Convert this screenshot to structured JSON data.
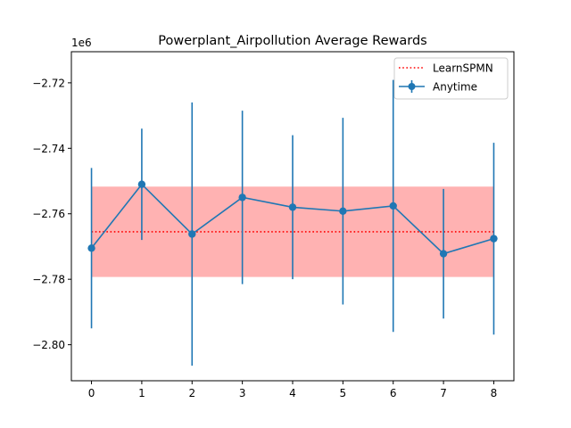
{
  "chart_data": {
    "type": "line",
    "title": "Powerplant_Airpollution Average Rewards",
    "xlabel": "",
    "ylabel": "",
    "y_offset_label": "1e6",
    "x": [
      0,
      1,
      2,
      3,
      4,
      5,
      6,
      7,
      8
    ],
    "xlim": [
      -0.4,
      8.4
    ],
    "ylim": [
      -2.811,
      -2.7105
    ],
    "xticks": [
      "0",
      "1",
      "2",
      "3",
      "4",
      "5",
      "6",
      "7",
      "8"
    ],
    "yticks": [
      {
        "value": -2.72,
        "label": "−2.72"
      },
      {
        "value": -2.74,
        "label": "−2.74"
      },
      {
        "value": -2.76,
        "label": "−2.76"
      },
      {
        "value": -2.78,
        "label": "−2.78"
      },
      {
        "value": -2.8,
        "label": "−2.80"
      }
    ],
    "grid": false,
    "legend_position": "top-right",
    "series": [
      {
        "name": "Anytime",
        "type": "errorbar",
        "color": "#1f77b4",
        "values": [
          -2.7705,
          -2.751,
          -2.7662,
          -2.755,
          -2.758,
          -2.7592,
          -2.7576,
          -2.7722,
          -2.7676
        ],
        "errors": [
          0.0245,
          0.017,
          0.0402,
          0.0265,
          0.022,
          0.0285,
          0.0385,
          0.0198,
          0.0293
        ]
      },
      {
        "name": "LearnSPMN",
        "type": "hline",
        "color": "#ff0000",
        "value": -2.7655,
        "band": [
          -2.7793,
          -2.7517
        ],
        "band_color": "#ff0000",
        "band_opacity": 0.3
      }
    ]
  }
}
